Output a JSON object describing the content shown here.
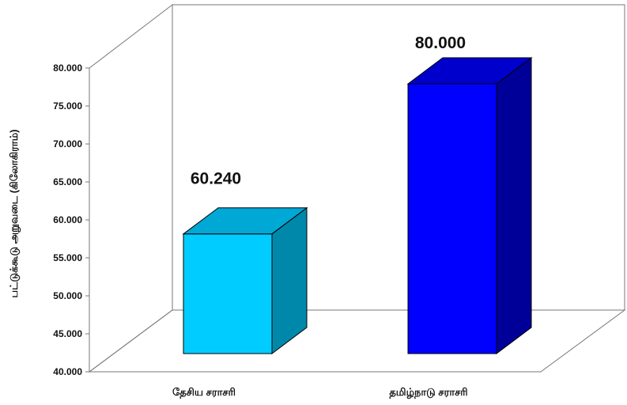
{
  "chart_data": {
    "type": "bar",
    "title": "",
    "xlabel": "",
    "ylabel": "பட்டுக்கூடு அறுவடை (கிலோகிராம்)",
    "categories": [
      "தேசிய சராசரி",
      "தமிழ்நாடு சராசரி"
    ],
    "values": [
      60.24,
      80.0
    ],
    "value_labels": [
      "60.240",
      "80.000"
    ],
    "ylim": [
      40,
      80
    ],
    "yticks": [
      "40.000",
      "45.000",
      "50.000",
      "55.000",
      "60.000",
      "65.000",
      "70.000",
      "75.000",
      "80.000"
    ],
    "grid": false,
    "legend": "none",
    "colors": {
      "bar1_front": "#00ccff",
      "bar1_side": "#0088aa",
      "bar1_top": "#00a8d6",
      "bar2_front": "#0000ff",
      "bar2_side": "#000099",
      "bar2_top": "#0000cc"
    }
  }
}
